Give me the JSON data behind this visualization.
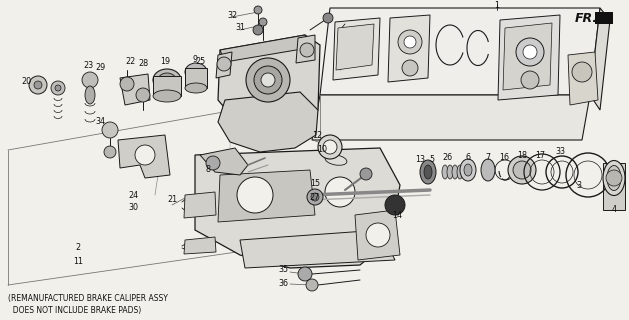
{
  "bg_color": "#f2f0eb",
  "line_color": "#1a1a1a",
  "text_color": "#111111",
  "bottom_text_line1": "(REMANUFACTURED BRAKE CALIPER ASSY",
  "bottom_text_line2": "  DOES NOT INCLUDE BRAKE PADS)",
  "fr_label": "FR.",
  "figsize": [
    6.29,
    3.2
  ],
  "dpi": 100
}
